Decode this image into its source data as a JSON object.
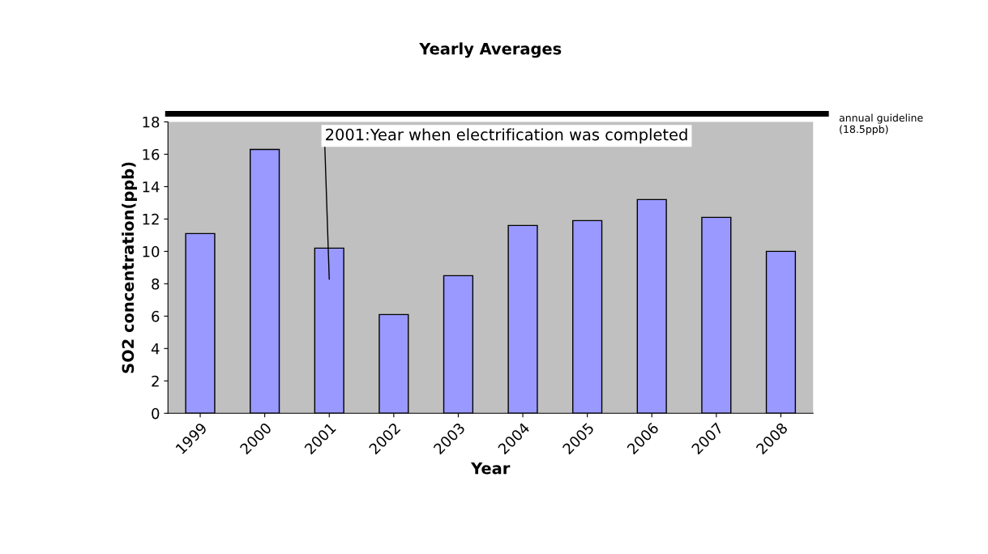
{
  "chart_data": {
    "type": "bar",
    "title": "Yearly Averages",
    "xlabel": "Year",
    "ylabel": "SO2 concentration(ppb)",
    "categories": [
      "1999",
      "2000",
      "2001",
      "2002",
      "2003",
      "2004",
      "2005",
      "2006",
      "2007",
      "2008"
    ],
    "values": [
      11.1,
      16.3,
      10.2,
      6.1,
      8.5,
      11.6,
      11.9,
      13.2,
      12.1,
      10.0
    ],
    "color": "#9999ff",
    "ylim": [
      0,
      18
    ],
    "yticks": [
      0,
      2,
      4,
      6,
      8,
      10,
      12,
      14,
      16,
      18
    ],
    "grid": false,
    "ref_lines": [
      {
        "axis": "y",
        "value": 18.5,
        "label": "annual guideline\n(18.5ppb)",
        "color": "#000000"
      }
    ],
    "annotations": [
      "2001:Year when electrification was completed"
    ]
  }
}
